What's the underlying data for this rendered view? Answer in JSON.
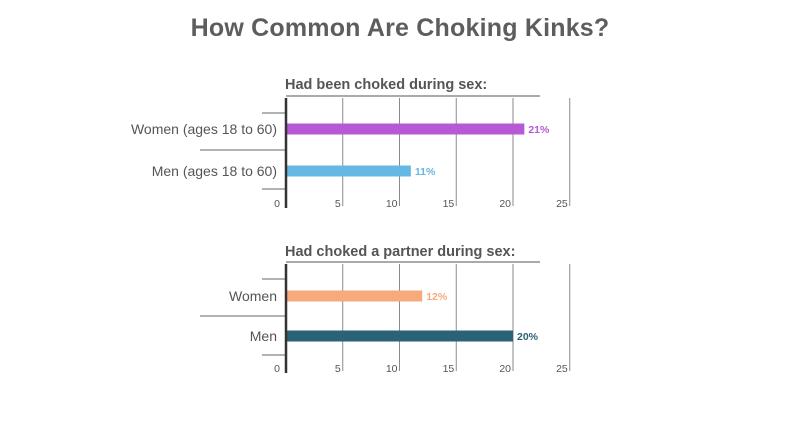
{
  "title": "How Common Are Choking Kinks?",
  "chart_data": [
    {
      "type": "bar",
      "orientation": "horizontal",
      "title": "Had been choked during sex:",
      "categories": [
        "Women (ages 18 to 60)",
        "Men (ages 18 to 60)"
      ],
      "values": [
        21,
        11
      ],
      "value_labels": [
        "21%",
        "11%"
      ],
      "colors": [
        "#b55ad4",
        "#65b8e3"
      ],
      "xlim": [
        0,
        25
      ],
      "xticks": [
        0,
        5,
        10,
        15,
        20,
        25
      ],
      "grid": true
    },
    {
      "type": "bar",
      "orientation": "horizontal",
      "title": "Had choked a partner during sex:",
      "categories": [
        "Women",
        "Men"
      ],
      "values": [
        12,
        20
      ],
      "value_labels": [
        "12%",
        "20%"
      ],
      "colors": [
        "#f7aa7c",
        "#2b6278"
      ],
      "xlim": [
        0,
        25
      ],
      "xticks": [
        0,
        5,
        10,
        15,
        20,
        25
      ],
      "grid": true
    }
  ]
}
